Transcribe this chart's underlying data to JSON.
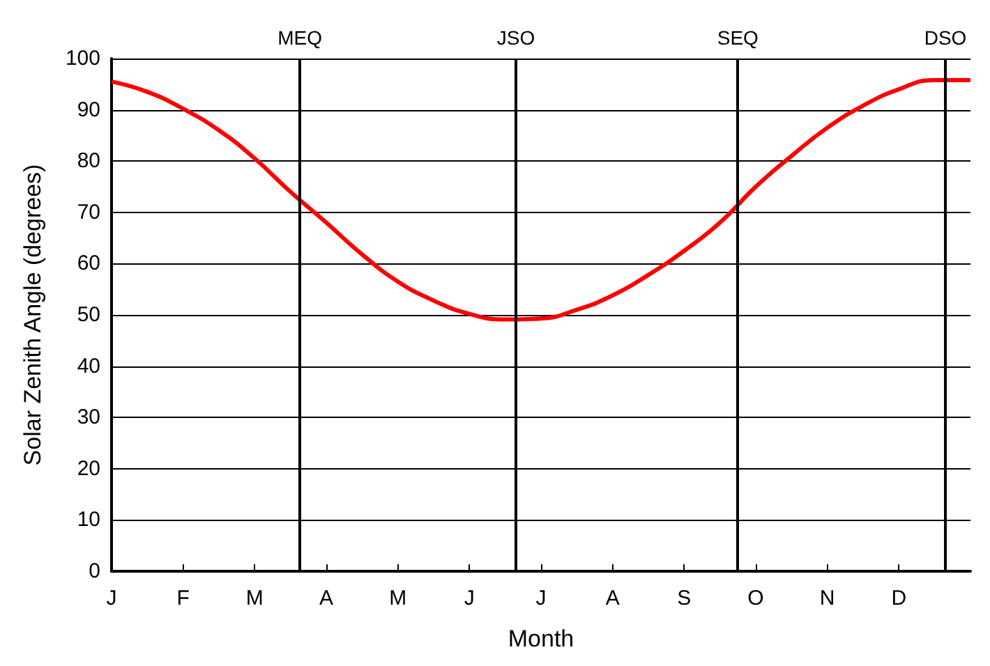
{
  "chart_data": {
    "type": "line",
    "xlabel": "Month",
    "ylabel": "Solar Zenith Angle (degrees)",
    "categories": [
      "J",
      null,
      "F",
      null,
      "M",
      null,
      "A",
      null,
      "M",
      null,
      "J",
      null,
      "J",
      null,
      "A",
      null,
      "S",
      null,
      "O",
      null,
      "N",
      null,
      "D",
      null,
      null
    ],
    "series": [
      {
        "color": "#ff0000",
        "values": [
          95.5,
          93.5,
          90.2,
          86,
          80.5,
          74,
          68,
          61.8,
          56.5,
          52.8,
          50.2,
          49.1,
          49.3,
          51,
          53.8,
          57.8,
          62.5,
          68,
          75,
          81,
          86.5,
          90.8,
          94,
          95.8,
          95.8
        ]
      }
    ],
    "ylim": [
      0,
      100
    ],
    "yticks": [
      0,
      10,
      20,
      30,
      40,
      50,
      60,
      70,
      80,
      90,
      100
    ],
    "annotations": [
      "MEQ",
      "JSO",
      "SEQ",
      "DSO"
    ],
    "grid": "y",
    "marker": "none",
    "line_style": "solid"
  }
}
